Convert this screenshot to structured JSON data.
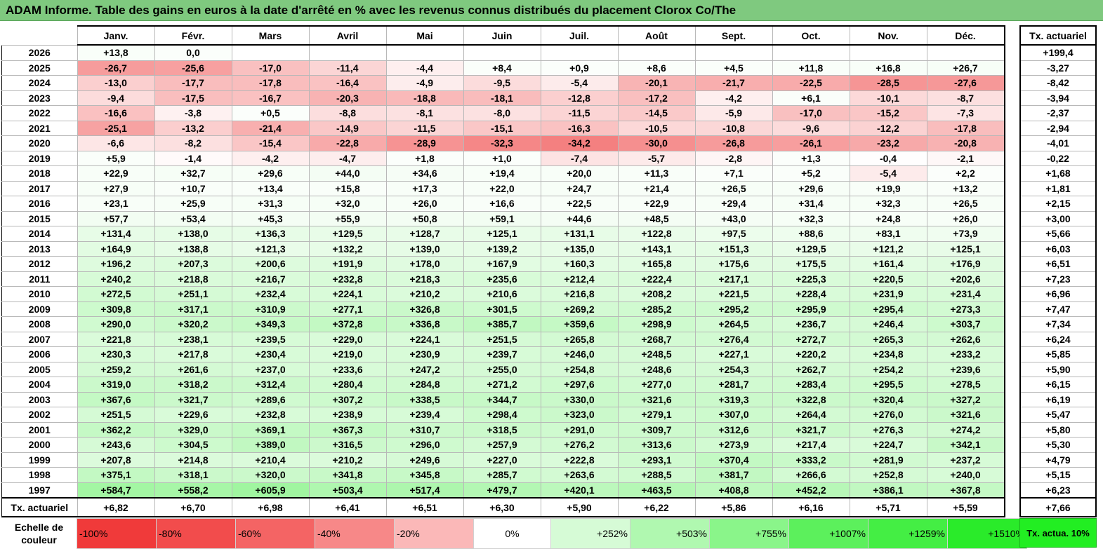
{
  "title": "ADAM Informe. Table des gains en euros à la date d'arrêté en % avec les revenus connus distribués du placement Clorox Co/The",
  "months": [
    "Janv.",
    "Févr.",
    "Mars",
    "Avril",
    "Mai",
    "Juin",
    "Juil.",
    "Août",
    "Sept.",
    "Oct.",
    "Nov.",
    "Déc."
  ],
  "side_header": "Tx. actuariel",
  "rows": [
    {
      "year": "2026",
      "vals": [
        "+13,8",
        "0,0",
        "",
        "",
        "",
        "",
        "",
        "",
        "",
        "",
        "",
        ""
      ],
      "tx": "+199,4"
    },
    {
      "year": "2025",
      "vals": [
        "-26,7",
        "-25,6",
        "-17,0",
        "-11,4",
        "-4,4",
        "+8,4",
        "+0,9",
        "+8,6",
        "+4,5",
        "+11,8",
        "+16,8",
        "+26,7"
      ],
      "tx": "-3,27"
    },
    {
      "year": "2024",
      "vals": [
        "-13,0",
        "-17,7",
        "-17,8",
        "-16,4",
        "-4,9",
        "-9,5",
        "-5,4",
        "-20,1",
        "-21,7",
        "-22,5",
        "-28,5",
        "-27,6"
      ],
      "tx": "-8,42"
    },
    {
      "year": "2023",
      "vals": [
        "-9,4",
        "-17,5",
        "-16,7",
        "-20,3",
        "-18,8",
        "-18,1",
        "-12,8",
        "-17,2",
        "-4,2",
        "+6,1",
        "-10,1",
        "-8,7"
      ],
      "tx": "-3,94"
    },
    {
      "year": "2022",
      "vals": [
        "-16,6",
        "-3,8",
        "+0,5",
        "-8,8",
        "-8,1",
        "-8,0",
        "-11,5",
        "-14,5",
        "-5,9",
        "-17,0",
        "-15,2",
        "-7,3"
      ],
      "tx": "-2,37"
    },
    {
      "year": "2021",
      "vals": [
        "-25,1",
        "-13,2",
        "-21,4",
        "-14,9",
        "-11,5",
        "-15,1",
        "-16,3",
        "-10,5",
        "-10,8",
        "-9,6",
        "-12,2",
        "-17,8"
      ],
      "tx": "-2,94"
    },
    {
      "year": "2020",
      "vals": [
        "-6,6",
        "-8,2",
        "-15,4",
        "-22,8",
        "-28,9",
        "-32,3",
        "-34,2",
        "-30,0",
        "-26,8",
        "-26,1",
        "-23,2",
        "-20,8"
      ],
      "tx": "-4,01"
    },
    {
      "year": "2019",
      "vals": [
        "+5,9",
        "-1,4",
        "-4,2",
        "-4,7",
        "+1,8",
        "+1,0",
        "-7,4",
        "-5,7",
        "-2,8",
        "+1,3",
        "-0,4",
        "-2,1"
      ],
      "tx": "-0,22"
    },
    {
      "year": "2018",
      "vals": [
        "+22,9",
        "+32,7",
        "+29,6",
        "+44,0",
        "+34,6",
        "+19,4",
        "+20,0",
        "+11,3",
        "+7,1",
        "+5,2",
        "-5,4",
        "+2,2"
      ],
      "tx": "+1,68"
    },
    {
      "year": "2017",
      "vals": [
        "+27,9",
        "+10,7",
        "+13,4",
        "+15,8",
        "+17,3",
        "+22,0",
        "+24,7",
        "+21,4",
        "+26,5",
        "+29,6",
        "+19,9",
        "+13,2"
      ],
      "tx": "+1,81"
    },
    {
      "year": "2016",
      "vals": [
        "+23,1",
        "+25,9",
        "+31,3",
        "+32,0",
        "+26,0",
        "+16,6",
        "+22,5",
        "+22,9",
        "+29,4",
        "+31,4",
        "+32,3",
        "+26,5"
      ],
      "tx": "+2,15"
    },
    {
      "year": "2015",
      "vals": [
        "+57,7",
        "+53,4",
        "+45,3",
        "+55,9",
        "+50,8",
        "+59,1",
        "+44,6",
        "+48,5",
        "+43,0",
        "+32,3",
        "+24,8",
        "+26,0"
      ],
      "tx": "+3,00"
    },
    {
      "year": "2014",
      "vals": [
        "+131,4",
        "+138,0",
        "+136,3",
        "+129,5",
        "+128,7",
        "+125,1",
        "+131,1",
        "+122,8",
        "+97,5",
        "+88,6",
        "+83,1",
        "+73,9"
      ],
      "tx": "+5,66"
    },
    {
      "year": "2013",
      "vals": [
        "+164,9",
        "+138,8",
        "+121,3",
        "+132,2",
        "+139,0",
        "+139,2",
        "+135,0",
        "+143,1",
        "+151,3",
        "+129,5",
        "+121,2",
        "+125,1"
      ],
      "tx": "+6,03"
    },
    {
      "year": "2012",
      "vals": [
        "+196,2",
        "+207,3",
        "+200,6",
        "+191,9",
        "+178,0",
        "+167,9",
        "+160,3",
        "+165,8",
        "+175,6",
        "+175,5",
        "+161,4",
        "+176,9"
      ],
      "tx": "+6,51"
    },
    {
      "year": "2011",
      "vals": [
        "+240,2",
        "+218,8",
        "+216,7",
        "+232,8",
        "+218,3",
        "+235,6",
        "+212,4",
        "+222,4",
        "+217,1",
        "+225,3",
        "+220,5",
        "+202,6"
      ],
      "tx": "+7,23"
    },
    {
      "year": "2010",
      "vals": [
        "+272,5",
        "+251,1",
        "+232,4",
        "+224,1",
        "+210,2",
        "+210,6",
        "+216,8",
        "+208,2",
        "+221,5",
        "+228,4",
        "+231,9",
        "+231,4"
      ],
      "tx": "+6,96"
    },
    {
      "year": "2009",
      "vals": [
        "+309,8",
        "+317,1",
        "+310,9",
        "+277,1",
        "+326,8",
        "+301,5",
        "+269,2",
        "+285,2",
        "+295,2",
        "+295,9",
        "+295,4",
        "+273,3"
      ],
      "tx": "+7,47"
    },
    {
      "year": "2008",
      "vals": [
        "+290,0",
        "+320,2",
        "+349,3",
        "+372,8",
        "+336,8",
        "+385,7",
        "+359,6",
        "+298,9",
        "+264,5",
        "+236,7",
        "+246,4",
        "+303,7"
      ],
      "tx": "+7,34"
    },
    {
      "year": "2007",
      "vals": [
        "+221,8",
        "+238,1",
        "+239,5",
        "+229,0",
        "+224,1",
        "+251,5",
        "+265,8",
        "+268,7",
        "+276,4",
        "+272,7",
        "+265,3",
        "+262,6"
      ],
      "tx": "+6,24"
    },
    {
      "year": "2006",
      "vals": [
        "+230,3",
        "+217,8",
        "+230,4",
        "+219,0",
        "+230,9",
        "+239,7",
        "+246,0",
        "+248,5",
        "+227,1",
        "+220,2",
        "+234,8",
        "+233,2"
      ],
      "tx": "+5,85"
    },
    {
      "year": "2005",
      "vals": [
        "+259,2",
        "+261,6",
        "+237,0",
        "+233,6",
        "+247,2",
        "+255,0",
        "+254,8",
        "+248,6",
        "+254,3",
        "+262,7",
        "+254,2",
        "+239,6"
      ],
      "tx": "+5,90"
    },
    {
      "year": "2004",
      "vals": [
        "+319,0",
        "+318,2",
        "+312,4",
        "+280,4",
        "+284,8",
        "+271,2",
        "+297,6",
        "+277,0",
        "+281,7",
        "+283,4",
        "+295,5",
        "+278,5"
      ],
      "tx": "+6,15"
    },
    {
      "year": "2003",
      "vals": [
        "+367,6",
        "+321,7",
        "+289,6",
        "+307,2",
        "+338,5",
        "+344,7",
        "+330,0",
        "+321,6",
        "+319,3",
        "+322,8",
        "+320,4",
        "+327,2"
      ],
      "tx": "+6,19"
    },
    {
      "year": "2002",
      "vals": [
        "+251,5",
        "+229,6",
        "+232,8",
        "+238,9",
        "+239,4",
        "+298,4",
        "+323,0",
        "+279,1",
        "+307,0",
        "+264,4",
        "+276,0",
        "+321,6"
      ],
      "tx": "+5,47"
    },
    {
      "year": "2001",
      "vals": [
        "+362,2",
        "+329,0",
        "+369,1",
        "+367,3",
        "+310,7",
        "+318,5",
        "+291,0",
        "+309,7",
        "+312,6",
        "+321,7",
        "+276,3",
        "+274,2"
      ],
      "tx": "+5,80"
    },
    {
      "year": "2000",
      "vals": [
        "+243,6",
        "+304,5",
        "+389,0",
        "+316,5",
        "+296,0",
        "+257,9",
        "+276,2",
        "+313,6",
        "+273,9",
        "+217,4",
        "+224,7",
        "+342,1"
      ],
      "tx": "+5,30"
    },
    {
      "year": "1999",
      "vals": [
        "+207,8",
        "+214,8",
        "+210,4",
        "+210,2",
        "+249,6",
        "+227,0",
        "+222,8",
        "+293,1",
        "+370,4",
        "+333,2",
        "+281,9",
        "+237,2"
      ],
      "tx": "+4,79"
    },
    {
      "year": "1998",
      "vals": [
        "+375,1",
        "+318,1",
        "+320,0",
        "+341,8",
        "+345,8",
        "+285,7",
        "+263,6",
        "+288,5",
        "+381,7",
        "+266,6",
        "+252,8",
        "+240,0"
      ],
      "tx": "+5,15"
    },
    {
      "year": "1997",
      "vals": [
        "+584,7",
        "+558,2",
        "+605,9",
        "+503,4",
        "+517,4",
        "+479,7",
        "+420,1",
        "+463,5",
        "+408,8",
        "+452,2",
        "+386,1",
        "+367,8"
      ],
      "tx": "+6,23"
    }
  ],
  "totals": {
    "label": "Tx. actuariel",
    "vals": [
      "+6,82",
      "+6,70",
      "+6,98",
      "+6,41",
      "+6,51",
      "+6,30",
      "+5,90",
      "+6,22",
      "+5,86",
      "+6,16",
      "+5,71",
      "+5,59"
    ],
    "tx": "+7,66"
  },
  "scale": {
    "label": "Echelle de couleur",
    "items": [
      {
        "text": "-100%",
        "color": "#f03a3a"
      },
      {
        "text": "-80%",
        "color": "#f24c4c"
      },
      {
        "text": "-60%",
        "color": "#f46464"
      },
      {
        "text": "-40%",
        "color": "#f78888"
      },
      {
        "text": "-20%",
        "color": "#fbb8b8"
      },
      {
        "text": "0%",
        "color": "#ffffff"
      },
      {
        "text": "+252%",
        "color": "#d6fbd6"
      },
      {
        "text": "+503%",
        "color": "#b0f8b0"
      },
      {
        "text": "+755%",
        "color": "#8af58a"
      },
      {
        "text": "+1007%",
        "color": "#5cf05c"
      },
      {
        "text": "+1259%",
        "color": "#44ee44"
      },
      {
        "text": "+1510%",
        "color": "#2aeb2a"
      }
    ],
    "side_text": "Tx. actua. 10%",
    "side_color": "#22ee22"
  }
}
